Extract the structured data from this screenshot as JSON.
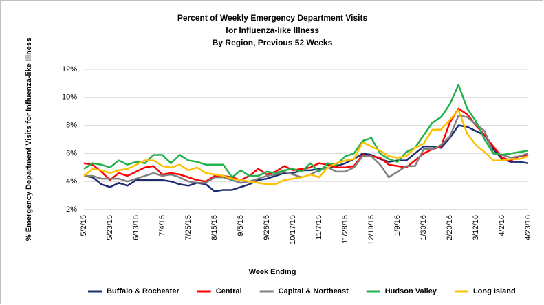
{
  "chart_data": {
    "type": "line",
    "title": [
      "Percent of Weekly Emergency Department Visits",
      "for Influenza-like Illness",
      "By Region, Previous 52 Weeks"
    ],
    "x_label": "Week Ending",
    "y_label": "% Emergency Department Visits for Influenza-like Illness",
    "categories": [
      "5/2/15",
      null,
      null,
      "5/23/15",
      null,
      null,
      "6/13/15",
      null,
      null,
      "7/4/15",
      null,
      null,
      "7/25/15",
      null,
      null,
      "8/15/15",
      null,
      null,
      "9/5/15",
      null,
      null,
      "9/26/15",
      null,
      null,
      "10/17/15",
      null,
      null,
      "11/7/15",
      null,
      null,
      "11/28/15",
      null,
      null,
      "12/19/15",
      null,
      null,
      "1/9/16",
      null,
      null,
      "1/30/16",
      null,
      null,
      "2/20/16",
      null,
      null,
      "3/12/16",
      null,
      null,
      "4/2/16",
      null,
      null,
      "4/23/16"
    ],
    "ylim": [
      2,
      12
    ],
    "yticks": [
      {
        "value": 2,
        "label": "2%"
      },
      {
        "value": 4,
        "label": "4%"
      },
      {
        "value": 6,
        "label": "6%"
      },
      {
        "value": 8,
        "label": "8%"
      },
      {
        "value": 10,
        "label": "10%"
      },
      {
        "value": 12,
        "label": "12%"
      }
    ],
    "grid": true,
    "legend": "bottom",
    "series": [
      {
        "name": "Buffalo & Rochester",
        "color": "#1f2d6e",
        "values": [
          4.4,
          4.3,
          3.8,
          3.6,
          3.9,
          3.7,
          4.1,
          4.1,
          4.1,
          4.1,
          4.0,
          3.8,
          3.7,
          3.9,
          3.8,
          3.3,
          3.4,
          3.4,
          3.6,
          3.8,
          4.1,
          4.2,
          4.4,
          4.6,
          4.6,
          4.8,
          4.8,
          4.9,
          5.0,
          5.1,
          5.3,
          5.6,
          6.0,
          5.9,
          5.6,
          5.4,
          5.5,
          5.5,
          6.0,
          6.5,
          6.5,
          6.4,
          7.1,
          8.0,
          7.9,
          7.6,
          7.3,
          6.3,
          5.6,
          5.4,
          5.4,
          5.3
        ]
      },
      {
        "name": "Central",
        "color": "#ff0000",
        "values": [
          5.3,
          5.2,
          4.7,
          4.1,
          4.6,
          4.4,
          4.7,
          5.0,
          5.1,
          4.5,
          4.6,
          4.5,
          4.3,
          4.1,
          4.0,
          4.4,
          4.4,
          4.3,
          4.1,
          4.4,
          4.9,
          4.5,
          4.7,
          5.1,
          4.8,
          4.9,
          5.0,
          5.3,
          5.2,
          5.0,
          5.0,
          5.1,
          5.9,
          5.8,
          5.7,
          5.2,
          5.1,
          5.0,
          5.5,
          6.0,
          6.3,
          6.5,
          8.2,
          9.2,
          8.8,
          8.0,
          7.3,
          6.5,
          5.7,
          5.5,
          5.8,
          5.9
        ]
      },
      {
        "name": "Capital & Northeast",
        "color": "#808080",
        "values": [
          4.4,
          4.4,
          4.2,
          4.2,
          4.2,
          4.0,
          4.2,
          4.4,
          4.6,
          4.4,
          4.5,
          4.3,
          4.0,
          3.9,
          3.9,
          4.3,
          4.3,
          4.1,
          3.9,
          4.0,
          4.2,
          4.4,
          4.5,
          4.7,
          4.5,
          4.3,
          4.5,
          4.8,
          5.0,
          4.7,
          4.7,
          5.0,
          5.8,
          5.8,
          5.2,
          4.3,
          4.7,
          5.1,
          5.1,
          6.3,
          6.3,
          6.6,
          7.2,
          8.7,
          8.6,
          8.1,
          7.6,
          6.0,
          5.9,
          5.7,
          5.8,
          6.0
        ]
      },
      {
        "name": "Hudson Valley",
        "color": "#22b14c",
        "values": [
          4.9,
          5.3,
          5.2,
          5.0,
          5.5,
          5.2,
          5.4,
          5.3,
          5.9,
          5.9,
          5.3,
          5.9,
          5.5,
          5.4,
          5.2,
          5.2,
          5.2,
          4.3,
          4.8,
          4.4,
          4.4,
          4.7,
          4.6,
          4.8,
          4.9,
          4.7,
          5.3,
          4.7,
          5.3,
          5.2,
          5.8,
          6.0,
          6.9,
          7.1,
          6.0,
          5.6,
          5.4,
          6.1,
          6.4,
          7.3,
          8.2,
          8.6,
          9.5,
          10.9,
          9.2,
          8.3,
          7.0,
          6.0,
          5.9,
          6.0,
          6.1,
          6.2
        ]
      },
      {
        "name": "Long Island",
        "color": "#ffc000",
        "values": [
          4.4,
          4.9,
          4.8,
          4.6,
          4.8,
          4.9,
          5.2,
          5.5,
          5.5,
          5.1,
          5.0,
          5.2,
          4.8,
          5.0,
          4.6,
          4.5,
          4.4,
          4.2,
          4.1,
          4.0,
          3.9,
          3.8,
          3.8,
          4.1,
          4.2,
          4.3,
          4.5,
          4.3,
          5.0,
          5.3,
          5.5,
          5.6,
          6.8,
          6.5,
          6.2,
          5.8,
          5.7,
          5.8,
          6.4,
          6.7,
          7.7,
          7.7,
          8.4,
          9.1,
          7.4,
          6.6,
          6.1,
          5.5,
          5.5,
          5.6,
          5.6,
          5.8
        ]
      }
    ]
  }
}
